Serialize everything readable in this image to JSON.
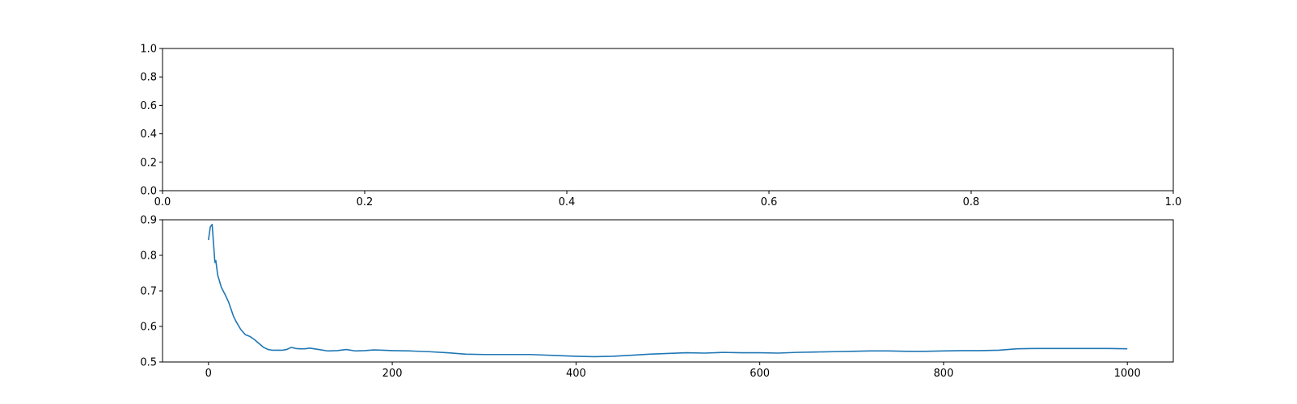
{
  "chart_data": [
    {
      "type": "line",
      "title": "",
      "xlabel": "",
      "ylabel": "",
      "xlim": [
        0.0,
        1.0
      ],
      "ylim": [
        0.0,
        1.0
      ],
      "grid": false,
      "series": [],
      "x_ticks": [
        0.0,
        0.2,
        0.4,
        0.6,
        0.8,
        1.0
      ],
      "x_tick_labels": [
        "0.0",
        "0.2",
        "0.4",
        "0.6",
        "0.8",
        "1.0"
      ],
      "y_ticks": [
        0.0,
        0.2,
        0.4,
        0.6,
        0.8,
        1.0
      ],
      "y_tick_labels": [
        "0.0",
        "0.2",
        "0.4",
        "0.6",
        "0.8",
        "1.0"
      ]
    },
    {
      "type": "line",
      "title": "",
      "xlabel": "",
      "ylabel": "",
      "xlim": [
        -50,
        1050
      ],
      "ylim": [
        0.5,
        0.9
      ],
      "grid": false,
      "line_color": "#1f77b4",
      "x_ticks": [
        0,
        200,
        400,
        600,
        800,
        1000
      ],
      "x_tick_labels": [
        "0",
        "200",
        "400",
        "600",
        "800",
        "1000"
      ],
      "y_ticks": [
        0.5,
        0.6,
        0.7,
        0.8,
        0.9
      ],
      "y_tick_labels": [
        "0.5",
        "0.6",
        "0.7",
        "0.8",
        "0.9"
      ],
      "series": [
        {
          "name": "series-1",
          "x": [
            0,
            2,
            4,
            7,
            8,
            10,
            14,
            18,
            22,
            27,
            30,
            35,
            40,
            45,
            50,
            55,
            60,
            65,
            70,
            75,
            80,
            85,
            90,
            95,
            100,
            105,
            110,
            115,
            120,
            130,
            140,
            150,
            160,
            170,
            180,
            190,
            200,
            220,
            240,
            260,
            280,
            300,
            320,
            350,
            380,
            400,
            420,
            440,
            460,
            480,
            500,
            520,
            540,
            560,
            580,
            600,
            620,
            640,
            660,
            680,
            700,
            720,
            740,
            760,
            780,
            800,
            820,
            840,
            860,
            880,
            900,
            920,
            940,
            960,
            980,
            1000
          ],
          "y": [
            0.843,
            0.88,
            0.887,
            0.78,
            0.785,
            0.745,
            0.71,
            0.69,
            0.668,
            0.63,
            0.614,
            0.592,
            0.577,
            0.572,
            0.563,
            0.552,
            0.541,
            0.535,
            0.533,
            0.533,
            0.533,
            0.535,
            0.541,
            0.538,
            0.537,
            0.537,
            0.539,
            0.537,
            0.535,
            0.531,
            0.532,
            0.535,
            0.531,
            0.532,
            0.534,
            0.533,
            0.532,
            0.531,
            0.529,
            0.526,
            0.522,
            0.521,
            0.521,
            0.521,
            0.518,
            0.516,
            0.515,
            0.516,
            0.519,
            0.522,
            0.524,
            0.526,
            0.525,
            0.527,
            0.526,
            0.526,
            0.525,
            0.527,
            0.528,
            0.529,
            0.53,
            0.531,
            0.531,
            0.53,
            0.53,
            0.531,
            0.532,
            0.532,
            0.533,
            0.537,
            0.538,
            0.538,
            0.538,
            0.538,
            0.538,
            0.537
          ]
        }
      ]
    }
  ]
}
